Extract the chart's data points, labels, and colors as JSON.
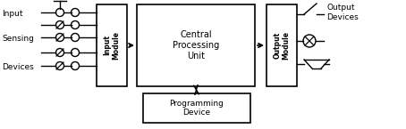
{
  "bg_color": "#ffffff",
  "line_color": "#000000",
  "lw": 1.2,
  "fig_w": 4.54,
  "fig_h": 1.45,
  "input_module_label": "Input\nModule",
  "cpu_label": "Central\nProcessing\nUnit",
  "output_module_label": "Output\nModule",
  "prog_device_label": "Programming\nDevice",
  "left_labels": [
    "Input",
    "Sensing",
    "Devices"
  ],
  "right_label": "Output\nDevices"
}
